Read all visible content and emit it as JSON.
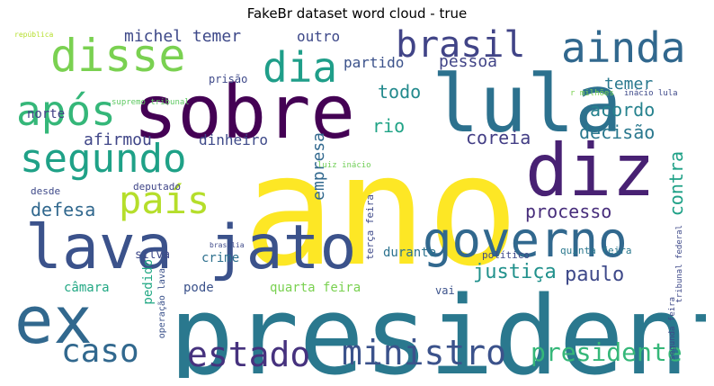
{
  "chart_data": {
    "type": "wordcloud",
    "title": "FakeBr dataset word cloud - true",
    "colormap": "viridis",
    "background": "#ffffff",
    "words": [
      {
        "text": "ano",
        "weight": 1.0,
        "color": "#fde725"
      },
      {
        "text": "presidente",
        "weight": 0.6,
        "color": "#2a788e"
      },
      {
        "text": "lula",
        "weight": 0.62,
        "color": "#2c718e"
      },
      {
        "text": "sobre",
        "weight": 0.55,
        "color": "#440154"
      },
      {
        "text": "ex",
        "weight": 0.52,
        "color": "#31688e"
      },
      {
        "text": "diz",
        "weight": 0.5,
        "color": "#482173"
      },
      {
        "text": "lava jato",
        "weight": 0.48,
        "color": "#3b528b"
      },
      {
        "text": "governo",
        "weight": 0.4,
        "color": "#31688e"
      },
      {
        "text": "disse",
        "weight": 0.36,
        "color": "#7ad151"
      },
      {
        "text": "ainda",
        "weight": 0.34,
        "color": "#31688e"
      },
      {
        "text": "após",
        "weight": 0.33,
        "color": "#35b779"
      },
      {
        "text": "dia",
        "weight": 0.33,
        "color": "#1f9e89"
      },
      {
        "text": "segundo",
        "weight": 0.31,
        "color": "#1fa187"
      },
      {
        "text": "país",
        "weight": 0.3,
        "color": "#b5de2b"
      },
      {
        "text": "brasil",
        "weight": 0.28,
        "color": "#414487"
      },
      {
        "text": "estado",
        "weight": 0.26,
        "color": "#46327e"
      },
      {
        "text": "ministro",
        "weight": 0.26,
        "color": "#3b528b"
      },
      {
        "text": "caso",
        "weight": 0.24,
        "color": "#31688e"
      },
      {
        "text": "presidente",
        "weight": 0.2,
        "color": "#35b779"
      },
      {
        "text": "justiça",
        "weight": 0.16,
        "color": "#21918c"
      },
      {
        "text": "processo",
        "weight": 0.15,
        "color": "#472d7b"
      },
      {
        "text": "paulo",
        "weight": 0.15,
        "color": "#3e4989"
      },
      {
        "text": "coreia",
        "weight": 0.14,
        "color": "#433e85"
      },
      {
        "text": "decisão",
        "weight": 0.14,
        "color": "#2a788e"
      },
      {
        "text": "acordo",
        "weight": 0.13,
        "color": "#26828e"
      },
      {
        "text": "todo",
        "weight": 0.13,
        "color": "#238a8d"
      },
      {
        "text": "defesa",
        "weight": 0.13,
        "color": "#31688e"
      },
      {
        "text": "temer",
        "weight": 0.12,
        "color": "#2a788e"
      },
      {
        "text": "contra",
        "weight": 0.12,
        "color": "#1fa187"
      },
      {
        "text": "empresa",
        "weight": 0.12,
        "color": "#31688e"
      },
      {
        "text": "michel temer",
        "weight": 0.11,
        "color": "#3e4989"
      },
      {
        "text": "pessoa",
        "weight": 0.11,
        "color": "#414487"
      },
      {
        "text": "partido",
        "weight": 0.1,
        "color": "#3b528b"
      },
      {
        "text": "afirmou",
        "weight": 0.1,
        "color": "#404688"
      },
      {
        "text": "rio",
        "weight": 0.12,
        "color": "#20a386"
      },
      {
        "text": "dinheiro",
        "weight": 0.09,
        "color": "#3e4a89"
      },
      {
        "text": "outro",
        "weight": 0.09,
        "color": "#3e4989"
      },
      {
        "text": "norte",
        "weight": 0.09,
        "color": "#424086"
      },
      {
        "text": "pedido",
        "weight": 0.1,
        "color": "#22a884"
      },
      {
        "text": "câmara",
        "weight": 0.09,
        "color": "#22a884"
      },
      {
        "text": "pode",
        "weight": 0.09,
        "color": "#3b528b"
      },
      {
        "text": "durante",
        "weight": 0.09,
        "color": "#2c728e"
      },
      {
        "text": "crime",
        "weight": 0.09,
        "color": "#2d708e"
      },
      {
        "text": "quarta feira",
        "weight": 0.08,
        "color": "#7ad151"
      },
      {
        "text": "silva",
        "weight": 0.08,
        "color": "#3e4989"
      },
      {
        "text": "vai",
        "weight": 0.06,
        "color": "#3b528b"
      },
      {
        "text": "prisão",
        "weight": 0.06,
        "color": "#3e4989"
      },
      {
        "text": "desde",
        "weight": 0.06,
        "color": "#3e4989"
      },
      {
        "text": "deputado",
        "weight": 0.05,
        "color": "#404688"
      },
      {
        "text": "político",
        "weight": 0.05,
        "color": "#3e4989"
      },
      {
        "text": "operação lava",
        "weight": 0.05,
        "color": "#3b528b"
      },
      {
        "text": "quinta feira",
        "weight": 0.05,
        "color": "#2a788e"
      },
      {
        "text": "luiz inácio",
        "weight": 0.05,
        "color": "#70cf57"
      },
      {
        "text": "terça feira",
        "weight": 0.05,
        "color": "#3e4989"
      },
      {
        "text": "brasília",
        "weight": 0.04,
        "color": "#3e4989"
      },
      {
        "text": "supremo tribunal",
        "weight": 0.04,
        "color": "#5ec962"
      },
      {
        "text": "tribunal federal",
        "weight": 0.04,
        "color": "#3e4989"
      },
      {
        "text": "r milhões",
        "weight": 0.04,
        "color": "#7ad151"
      },
      {
        "text": "inácio lula",
        "weight": 0.04,
        "color": "#3e4989"
      },
      {
        "text": "república",
        "weight": 0.03,
        "color": "#b5de2b"
      },
      {
        "text": "segunda feira",
        "weight": 0.03,
        "color": "#3e4989"
      }
    ]
  }
}
